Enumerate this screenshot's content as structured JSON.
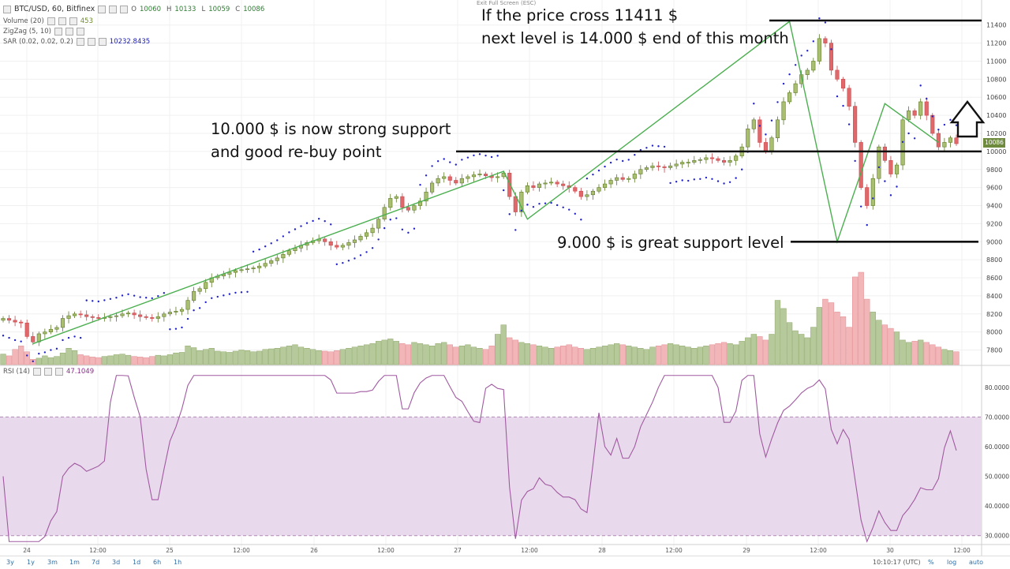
{
  "header": {
    "symbol": "BTC/USD, 60, Bitfinex",
    "o_label": "O",
    "o_value": "10060",
    "h_label": "H",
    "h_value": "10133",
    "l_label": "L",
    "l_value": "10059",
    "c_label": "C",
    "c_value": "10086",
    "exit_fullscreen": "Exit Full Screen (ESC)"
  },
  "indicators": {
    "volume": {
      "label": "Volume (20)",
      "value": "453"
    },
    "zigzag": {
      "label": "ZigZag (5, 10)"
    },
    "sar": {
      "label": "SAR (0.02, 0.02, 0.2)",
      "value": "10232.8435"
    },
    "rsi": {
      "label": "RSI (14)",
      "value": "47.1049"
    }
  },
  "annotations": {
    "top_line1": "If the price cross 11411 $",
    "top_line2": "next level is 14.000 $ end of this month",
    "mid_line1": "10.000 $ is now strong support",
    "mid_line2": "and good re-buy point",
    "low_line1": "9.000 $ is great support level"
  },
  "current_price_label": "10086",
  "bottom_bar": {
    "timeframes": [
      "3y",
      "1y",
      "3m",
      "1m",
      "7d",
      "3d",
      "1d",
      "6h",
      "1h"
    ],
    "clock": "10:10:17 (UTC)",
    "percent": "%",
    "log": "log",
    "auto": "auto"
  },
  "colors": {
    "up_candle": "#a9bf6f",
    "down_candle": "#e0686b",
    "vol_up": "#b5c99a",
    "vol_down": "#f2b5b8",
    "zigzag": "#4caf50",
    "sar": "#2222cc",
    "rsi_line": "#a05aa0",
    "rsi_band": "#e9d9ec"
  },
  "chart_data": {
    "type": "candlestick",
    "x_ticks": [
      "24",
      "12:00",
      "25",
      "12:00",
      "26",
      "12:00",
      "27",
      "12:00",
      "28",
      "12:00",
      "29",
      "12:00",
      "30",
      "12:00"
    ],
    "price_axis_ticks": [
      7800,
      8000,
      8200,
      8400,
      8600,
      8800,
      9000,
      9200,
      9400,
      9600,
      9800,
      10000,
      10200,
      10400,
      10600,
      10800,
      11000,
      11200,
      11400
    ],
    "price_range": [
      7630,
      11520
    ],
    "rsi_axis_ticks": [
      "30.0000",
      "40.0000",
      "50.0000",
      "60.0000",
      "70.0000",
      "80.0000"
    ],
    "rsi_range": [
      27,
      85
    ],
    "rsi_levels": [
      30,
      70
    ],
    "horizontal_levels": [
      11450,
      10000,
      9000
    ],
    "zigzag_points": [
      [
        5,
        7870
      ],
      [
        84,
        9780
      ],
      [
        88,
        9250
      ],
      [
        132,
        11440
      ],
      [
        140,
        9000
      ],
      [
        148,
        10530
      ],
      [
        157,
        10100
      ]
    ],
    "closes": [
      8150,
      8130,
      8110,
      8100,
      7950,
      7890,
      7980,
      8000,
      8030,
      8050,
      8150,
      8180,
      8200,
      8190,
      8170,
      8160,
      8150,
      8160,
      8170,
      8180,
      8200,
      8210,
      8190,
      8170,
      8160,
      8150,
      8170,
      8200,
      8220,
      8230,
      8250,
      8350,
      8450,
      8480,
      8550,
      8600,
      8620,
      8640,
      8660,
      8680,
      8690,
      8700,
      8710,
      8730,
      8760,
      8790,
      8820,
      8860,
      8900,
      8930,
      8960,
      8990,
      9010,
      9030,
      9000,
      8960,
      8940,
      8960,
      8990,
      9020,
      9060,
      9100,
      9150,
      9250,
      9380,
      9480,
      9500,
      9380,
      9350,
      9400,
      9450,
      9550,
      9650,
      9700,
      9720,
      9680,
      9650,
      9700,
      9720,
      9740,
      9750,
      9730,
      9710,
      9720,
      9760,
      9500,
      9330,
      9550,
      9620,
      9600,
      9640,
      9650,
      9660,
      9640,
      9620,
      9600,
      9560,
      9500,
      9520,
      9560,
      9600,
      9640,
      9680,
      9710,
      9690,
      9700,
      9750,
      9800,
      9820,
      9840,
      9830,
      9820,
      9840,
      9860,
      9880,
      9880,
      9900,
      9910,
      9930,
      9920,
      9900,
      9880,
      9900,
      9950,
      10050,
      10250,
      10350,
      10100,
      10000,
      10150,
      10350,
      10550,
      10650,
      10750,
      10850,
      10900,
      11000,
      11250,
      11200,
      10900,
      10800,
      10700,
      10500,
      10100,
      9600,
      9400,
      9700,
      10050,
      9900,
      9750,
      9850,
      10350,
      10450,
      10400,
      10550,
      10400,
      10200,
      10050,
      10100,
      10150,
      10086
    ],
    "volumes": [
      180,
      150,
      260,
      320,
      220,
      90,
      110,
      150,
      120,
      140,
      200,
      280,
      240,
      170,
      150,
      130,
      120,
      140,
      150,
      170,
      180,
      160,
      140,
      130,
      120,
      140,
      160,
      150,
      170,
      200,
      210,
      320,
      290,
      240,
      260,
      280,
      230,
      220,
      210,
      230,
      250,
      240,
      220,
      230,
      260,
      270,
      280,
      300,
      320,
      340,
      300,
      280,
      260,
      240,
      230,
      220,
      240,
      260,
      280,
      300,
      320,
      340,
      360,
      400,
      420,
      440,
      400,
      360,
      340,
      380,
      360,
      340,
      320,
      360,
      380,
      340,
      300,
      320,
      340,
      300,
      280,
      260,
      320,
      520,
      680,
      460,
      420,
      380,
      360,
      340,
      320,
      300,
      280,
      300,
      320,
      340,
      300,
      280,
      260,
      280,
      300,
      320,
      340,
      360,
      340,
      320,
      300,
      280,
      260,
      300,
      320,
      340,
      360,
      340,
      320,
      300,
      280,
      300,
      320,
      340,
      360,
      380,
      360,
      340,
      400,
      460,
      520,
      480,
      420,
      520,
      1100,
      960,
      720,
      580,
      520,
      460,
      640,
      980,
      1120,
      1060,
      900,
      820,
      640,
      1500,
      1580,
      1120,
      900,
      760,
      680,
      620,
      560,
      420,
      380,
      400,
      420,
      380,
      340,
      300,
      260,
      240,
      220
    ]
  }
}
